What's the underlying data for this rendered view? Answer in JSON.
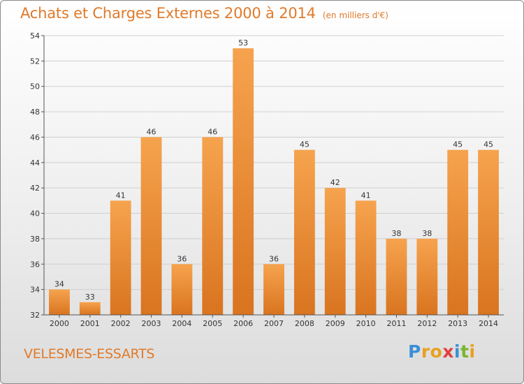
{
  "chart_data": {
    "type": "bar",
    "title": "Achats et Charges Externes 2000 à 2014",
    "subtitle": "(en milliers d'€)",
    "categories": [
      "2000",
      "2001",
      "2002",
      "2003",
      "2004",
      "2005",
      "2006",
      "2007",
      "2008",
      "2009",
      "2010",
      "2011",
      "2012",
      "2013",
      "2014"
    ],
    "values": [
      34,
      33,
      41,
      46,
      36,
      46,
      53,
      36,
      45,
      42,
      41,
      38,
      38,
      45,
      45
    ],
    "ylim": [
      32,
      54
    ],
    "yticks": [
      "32",
      "34",
      "36",
      "38",
      "40",
      "42",
      "44",
      "46",
      "48",
      "50",
      "52",
      "54"
    ],
    "xlabel": "",
    "ylabel": "",
    "grid": true,
    "legend": "none",
    "bar_color_top": "#f6a34e",
    "bar_color_bottom": "#d9741f"
  },
  "commune": "VELESMES-ESSARTS",
  "brand": {
    "letters": [
      {
        "ch": "P",
        "color": "#3a8fd6"
      },
      {
        "ch": "r",
        "color": "#e8a020"
      },
      {
        "ch": "o",
        "color": "#e8a020"
      },
      {
        "ch": "x",
        "color": "#e04040"
      },
      {
        "ch": "i",
        "color": "#3a8fd6"
      },
      {
        "ch": "t",
        "color": "#7ab530"
      },
      {
        "ch": "i",
        "color": "#e8a020"
      }
    ]
  }
}
